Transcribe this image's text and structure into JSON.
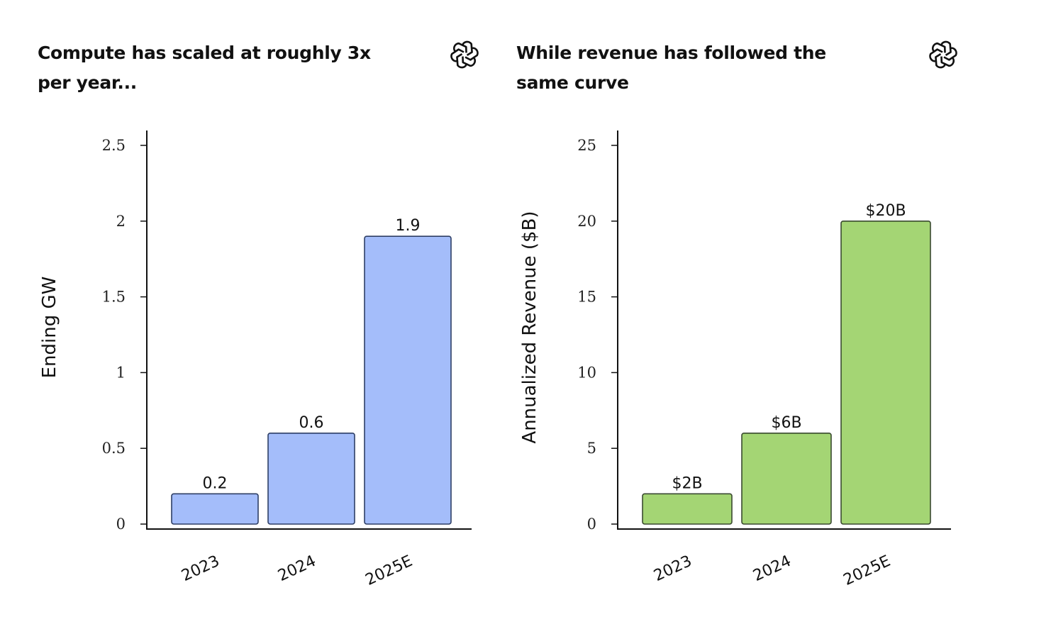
{
  "charts": [
    {
      "heading": "Compute has scaled at roughly 3x per year...",
      "logo_icon": "openai-logo-icon",
      "chart_data": {
        "type": "bar",
        "categories": [
          "2023",
          "2024",
          "2025E"
        ],
        "values": [
          0.2,
          0.6,
          1.9
        ],
        "data_labels": [
          "0.2",
          "0.6",
          "1.9"
        ],
        "ylabel": "Ending GW",
        "ylim": [
          0,
          2.6
        ],
        "yticks": [
          0,
          0.5,
          1,
          1.5,
          2,
          2.5
        ],
        "ytick_labels": [
          "0",
          "0.5",
          "1",
          "1.5",
          "2",
          "2.5"
        ],
        "bar_color": "#a4bdfa",
        "bar_edge_color": "#2e3f66",
        "grid": false
      }
    },
    {
      "heading": "While revenue has followed the same curve",
      "logo_icon": "openai-logo-icon",
      "chart_data": {
        "type": "bar",
        "categories": [
          "2023",
          "2024",
          "2025E"
        ],
        "values": [
          2,
          6,
          20
        ],
        "data_labels": [
          "$2B",
          "$6B",
          "$20B"
        ],
        "ylabel": "Annualized Revenue ($B)",
        "ylim": [
          0,
          26
        ],
        "yticks": [
          0,
          5,
          10,
          15,
          20,
          25
        ],
        "ytick_labels": [
          "0",
          "5",
          "10",
          "15",
          "20",
          "25"
        ],
        "bar_color": "#a4d574",
        "bar_edge_color": "#3a4a30",
        "grid": false
      }
    }
  ]
}
